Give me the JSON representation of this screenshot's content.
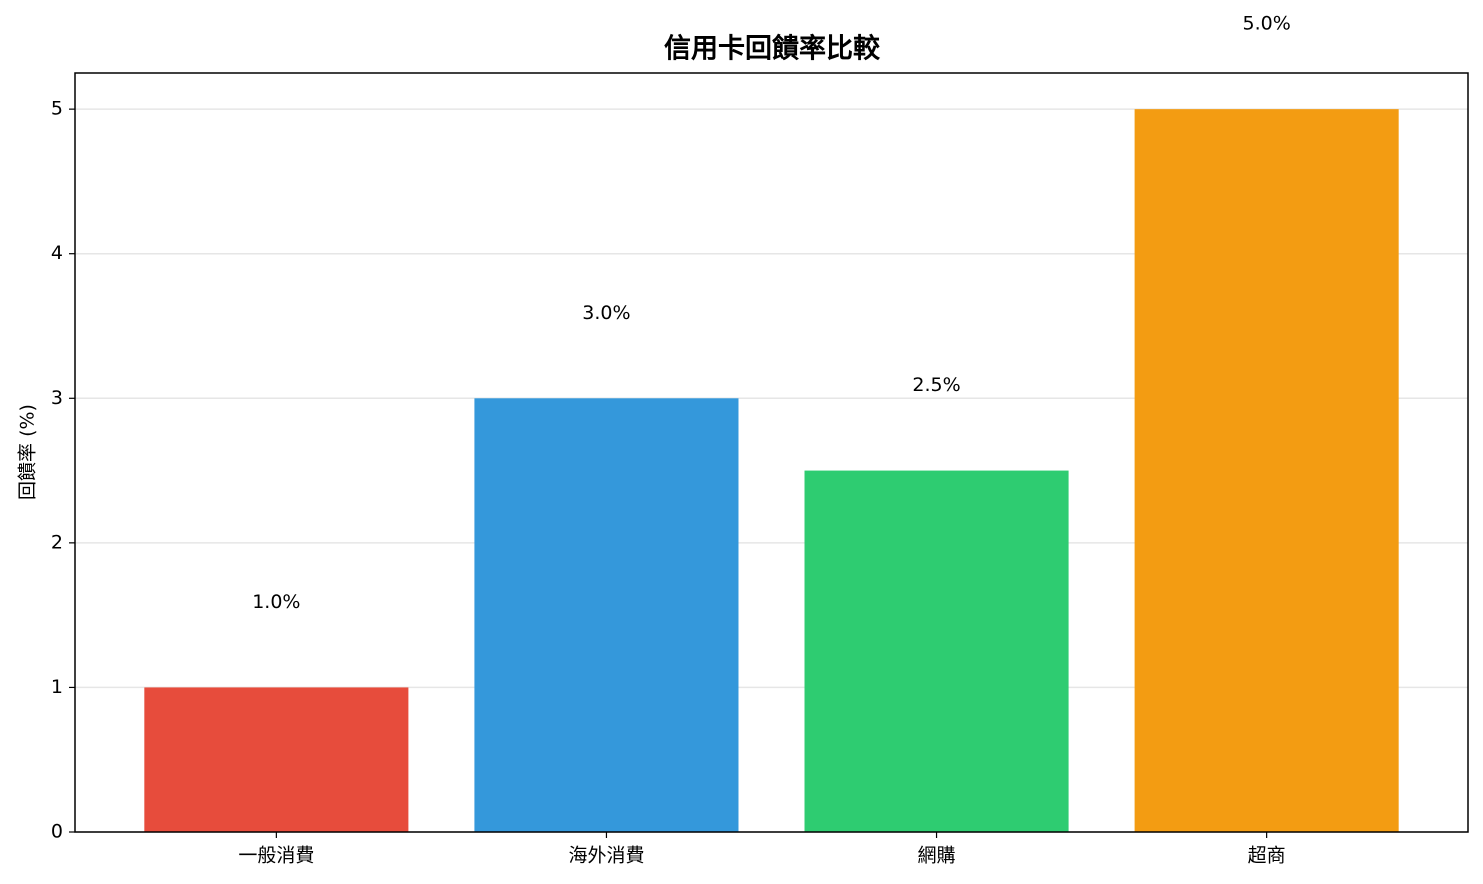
{
  "chart_data": {
    "type": "bar",
    "title": "信用卡回饋率比較",
    "y_label": "回饋率 (%)",
    "categories": [
      "一般消費",
      "海外消費",
      "網購",
      "超商"
    ],
    "values": [
      1.0,
      3.0,
      2.5,
      5.0
    ],
    "value_labels": [
      "1.0%",
      "3.0%",
      "2.5%",
      "5.0%"
    ],
    "colors": [
      "#e74c3c",
      "#3498db",
      "#2ecc71",
      "#f39c12"
    ],
    "ylim": [
      0,
      5.25
    ],
    "yticks": [
      0,
      1,
      2,
      3,
      4,
      5
    ],
    "grid": true
  }
}
